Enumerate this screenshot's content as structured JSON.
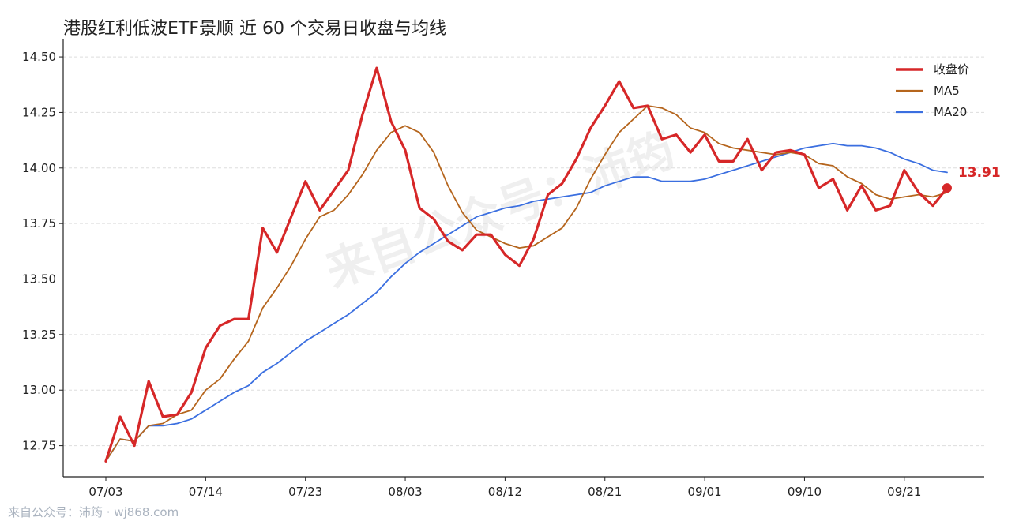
{
  "title": "港股红利低波ETF景顺 近 60 个交易日收盘与均线",
  "footer": "来自公众号：沛筠 · wj868.com",
  "watermark": "来自公众号：沛筠",
  "colors": {
    "close": "#d62728",
    "ma5": "#b5651d",
    "ma20": "#3b6fe0",
    "grid": "#dddddd"
  },
  "chart_data": {
    "type": "line",
    "title": "港股红利低波ETF景顺 近 60 个交易日收盘与均线",
    "xlabel": "",
    "ylabel": "",
    "ylim": [
      12.61,
      14.55
    ],
    "yticks": [
      12.75,
      13.0,
      13.25,
      13.5,
      13.75,
      14.0,
      14.25,
      14.5
    ],
    "ytick_labels": [
      "12.75",
      "13.00",
      "13.25",
      "13.50",
      "13.75",
      "14.00",
      "14.25",
      "14.50"
    ],
    "xticks": [
      {
        "index": 0,
        "label": "07/03"
      },
      {
        "index": 7,
        "label": "07/14"
      },
      {
        "index": 14,
        "label": "07/23"
      },
      {
        "index": 21,
        "label": "08/03"
      },
      {
        "index": 28,
        "label": "08/12"
      },
      {
        "index": 35,
        "label": "08/21"
      },
      {
        "index": 42,
        "label": "09/01"
      },
      {
        "index": 49,
        "label": "09/10"
      },
      {
        "index": 56,
        "label": "09/21"
      }
    ],
    "grid": "horizontal-dashed",
    "legend_position": "top-right",
    "series": [
      {
        "name": "收盘价",
        "values": [
          12.68,
          12.88,
          12.75,
          13.04,
          12.88,
          12.89,
          12.99,
          13.19,
          13.29,
          13.32,
          13.32,
          13.73,
          13.62,
          13.78,
          13.94,
          13.81,
          13.9,
          13.99,
          14.24,
          14.45,
          14.21,
          14.08,
          13.82,
          13.77,
          13.67,
          13.63,
          13.7,
          13.7,
          13.61,
          13.56,
          13.68,
          13.88,
          13.93,
          14.04,
          14.18,
          14.28,
          14.39,
          14.27,
          14.28,
          14.13,
          14.15,
          14.07,
          14.15,
          14.03,
          14.03,
          14.13,
          13.99,
          14.07,
          14.08,
          14.06,
          13.91,
          13.95,
          13.81,
          13.92,
          13.81,
          13.83,
          13.99,
          13.89,
          13.83,
          13.91
        ]
      },
      {
        "name": "MA5",
        "values": [
          12.68,
          12.78,
          12.77,
          12.84,
          12.85,
          12.89,
          12.91,
          13.0,
          13.05,
          13.14,
          13.22,
          13.37,
          13.46,
          13.56,
          13.68,
          13.78,
          13.81,
          13.88,
          13.97,
          14.08,
          14.16,
          14.19,
          14.16,
          14.07,
          13.92,
          13.8,
          13.72,
          13.69,
          13.66,
          13.64,
          13.65,
          13.69,
          13.73,
          13.82,
          13.95,
          14.06,
          14.16,
          14.22,
          14.28,
          14.27,
          14.24,
          14.18,
          14.16,
          14.11,
          14.09,
          14.08,
          14.07,
          14.06,
          14.07,
          14.06,
          14.02,
          14.01,
          13.96,
          13.93,
          13.88,
          13.86,
          13.87,
          13.88,
          13.87,
          13.89
        ]
      },
      {
        "name": "MA20",
        "values": [
          12.68,
          12.78,
          12.77,
          12.84,
          12.84,
          12.85,
          12.87,
          12.91,
          12.95,
          12.99,
          13.02,
          13.08,
          13.12,
          13.17,
          13.22,
          13.26,
          13.3,
          13.34,
          13.39,
          13.44,
          13.51,
          13.57,
          13.62,
          13.66,
          13.7,
          13.74,
          13.78,
          13.8,
          13.82,
          13.83,
          13.85,
          13.86,
          13.87,
          13.88,
          13.89,
          13.92,
          13.94,
          13.96,
          13.96,
          13.94,
          13.94,
          13.94,
          13.95,
          13.97,
          13.99,
          14.01,
          14.03,
          14.05,
          14.07,
          14.09,
          14.1,
          14.11,
          14.1,
          14.1,
          14.09,
          14.07,
          14.04,
          14.02,
          13.99,
          13.98
        ]
      }
    ],
    "annotations": [
      {
        "text": "13.91",
        "series": "收盘价",
        "index": 59
      }
    ]
  }
}
